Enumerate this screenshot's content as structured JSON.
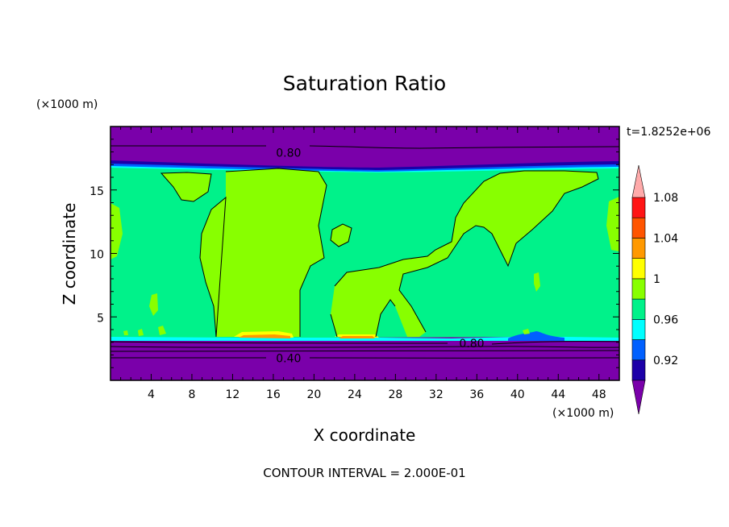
{
  "chart_data": {
    "type": "contour",
    "title": "Saturation Ratio",
    "xlabel": "X coordinate",
    "ylabel": "Z coordinate",
    "x_unit": "(×1000 m)",
    "y_unit": "(×1000 m)",
    "time_label": "t=1.8252e+06",
    "footer": "CONTOUR INTERVAL = 2.000E-01",
    "xlim": [
      0,
      50
    ],
    "ylim": [
      0,
      20
    ],
    "x_ticks": [
      4,
      8,
      12,
      16,
      20,
      24,
      28,
      32,
      36,
      40,
      44,
      48
    ],
    "y_ticks": [
      5,
      10,
      15
    ],
    "contour_labels": [
      {
        "text": "0.80",
        "x": 17.5,
        "y": 18.0
      },
      {
        "text": "0.80",
        "x": 35.5,
        "y": 3.0
      },
      {
        "text": "0.40",
        "x": 17.5,
        "y": 1.8
      }
    ],
    "colorbar": {
      "labels": [
        "1.08",
        "1.04",
        "1",
        "0.96",
        "0.92"
      ],
      "levels": [
        0.92,
        0.96,
        1.0,
        1.04,
        1.08
      ],
      "colors": [
        "#7a00aa",
        "#1c00a8",
        "#0060ff",
        "#00ffff",
        "#00f28a",
        "#88ff00",
        "#ffff00",
        "#ff9900",
        "#ff5500",
        "#ff1515",
        "#ffaaaa"
      ]
    },
    "fill_colors": {
      "dry": "#7a00aa",
      "deep_blue": "#1c00a8",
      "blue": "#0060ff",
      "cyan": "#00ffff",
      "near_saturated": "#00f28a",
      "saturated": "#88ff00",
      "supersat": "#ffff00",
      "supersat_high": "#ff9900"
    }
  }
}
